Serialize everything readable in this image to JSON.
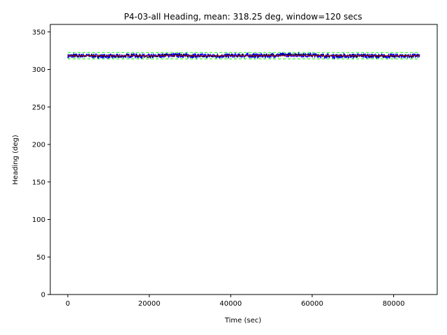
{
  "chart_data": {
    "type": "line",
    "title": "P4-03-all Heading, mean: 318.25 deg, window=120 secs",
    "xlabel": "Time (sec)",
    "ylabel": "Heading (deg)",
    "xlim": [
      -4300,
      90700
    ],
    "ylim": [
      0,
      360
    ],
    "xticks": [
      0,
      20000,
      40000,
      60000,
      80000
    ],
    "yticks": [
      0,
      50,
      100,
      150,
      200,
      250,
      300,
      350
    ],
    "grid": false,
    "legend": "none",
    "mean": 318.25,
    "x_range": [
      0,
      86400
    ],
    "colors": {
      "raw": "#0000ff",
      "window_band": "#00ff00",
      "window_mean": "#ff0000",
      "marker": "#000000",
      "series_line": "#0000ff"
    },
    "series": [
      {
        "role": "raw_heading",
        "x": [
          0,
          4000,
          8000,
          12000,
          16000,
          20000,
          24000,
          28000,
          32000,
          36000,
          40000,
          44000,
          48000,
          52000,
          56000,
          60000,
          64000,
          68000,
          72000,
          76000,
          80000,
          84000,
          86400
        ],
        "values": [
          318,
          318.5,
          317.8,
          317.5,
          318.8,
          317.2,
          319.0,
          318.6,
          318.2,
          317.9,
          318.3,
          318.7,
          318.1,
          319.2,
          319.4,
          318.9,
          318.0,
          317.8,
          318.5,
          317.6,
          318.1,
          317.9,
          318.3
        ],
        "spread": 3
      },
      {
        "role": "window_upper",
        "x": [
          0,
          86400
        ],
        "values": [
          322.5,
          322.5
        ]
      },
      {
        "role": "window_lower",
        "x": [
          0,
          86400
        ],
        "values": [
          314,
          314
        ]
      }
    ]
  }
}
